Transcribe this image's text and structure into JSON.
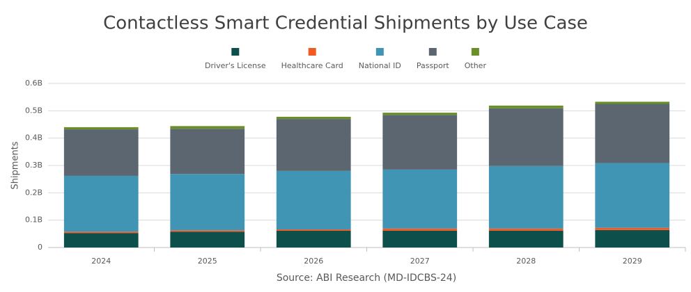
{
  "chart_data": {
    "type": "stacked-bar",
    "title": "Contactless Smart Credential Shipments by Use Case",
    "y_label": "Shipments",
    "source": "Source: ABI Research (MD-IDCBS-24)",
    "categories": [
      "2024",
      "2025",
      "2026",
      "2027",
      "2028",
      "2029"
    ],
    "series": [
      {
        "name": "Driver's License",
        "color": "#0d4f4a",
        "values": [
          0.053,
          0.058,
          0.061,
          0.061,
          0.061,
          0.064
        ]
      },
      {
        "name": "Healthcare Card",
        "color": "#f15a24",
        "values": [
          0.005,
          0.005,
          0.005,
          0.008,
          0.008,
          0.008
        ]
      },
      {
        "name": "National ID",
        "color": "#4095b5",
        "values": [
          0.204,
          0.206,
          0.214,
          0.216,
          0.229,
          0.237
        ]
      },
      {
        "name": "Passport",
        "color": "#5c6670",
        "values": [
          0.17,
          0.165,
          0.19,
          0.2,
          0.211,
          0.216
        ]
      },
      {
        "name": "Other",
        "color": "#6a8f2a",
        "values": [
          0.008,
          0.01,
          0.008,
          0.008,
          0.01,
          0.008
        ]
      }
    ],
    "ylim": [
      0,
      0.6
    ],
    "yticks": [
      0,
      {
        "value": 0.1,
        "label": "0.1B"
      },
      {
        "value": 0.2,
        "label": "0.2B"
      },
      {
        "value": 0.3,
        "label": "0.3B"
      },
      {
        "value": 0.4,
        "label": "0.4B"
      },
      {
        "value": 0.5,
        "label": "0.5B"
      },
      {
        "value": 0.6,
        "label": "0.6B"
      }
    ],
    "grid": true
  }
}
